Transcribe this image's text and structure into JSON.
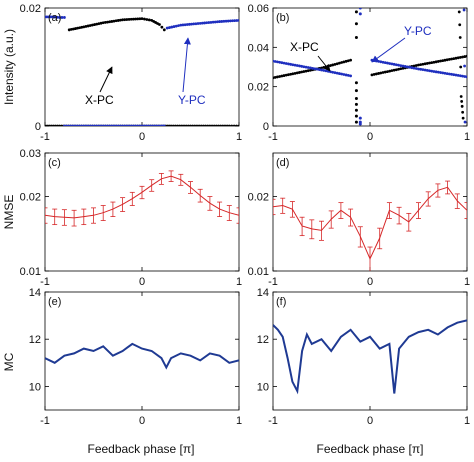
{
  "labels": {
    "ylabels": [
      "Intensity (a.u.)",
      "NMSE",
      "MC"
    ],
    "xlabel": "Feedback phase [π]"
  },
  "chart_data": [
    {
      "type": "scatter",
      "panel_label": "(a)",
      "xlim": [
        -1,
        1
      ],
      "ylim": [
        0,
        0.02
      ],
      "xticks": [
        -1,
        0,
        1
      ],
      "yticks": [
        0,
        0.02
      ],
      "ytick_labels": [
        "0",
        "0.02"
      ],
      "annotations": [
        "X-PC",
        "Y-PC"
      ],
      "series": [
        {
          "color": "#000000",
          "x": [
            -1,
            -0.85,
            -0.6,
            -0.4,
            -0.2,
            0,
            0.15,
            0.22,
            0.3,
            0.5,
            0.7,
            0.9,
            1
          ],
          "y": [
            0,
            0,
            0,
            0,
            0,
            0,
            0,
            0,
            0,
            0,
            0,
            0,
            0
          ]
        },
        {
          "color": "#000000",
          "x": [
            -0.75,
            -0.6,
            -0.4,
            -0.2,
            0,
            0.1,
            0.18,
            0.23
          ],
          "y": [
            0.0163,
            0.0168,
            0.0175,
            0.018,
            0.0182,
            0.0179,
            0.0172,
            0.0163
          ]
        },
        {
          "color": "#1f2fbf",
          "x": [
            -1,
            -0.92,
            -0.85,
            -0.8
          ],
          "y": [
            0.0185,
            0.0185,
            0.0184,
            0.0184
          ]
        },
        {
          "color": "#1f2fbf",
          "x": [
            -0.8,
            -0.6,
            -0.4,
            -0.2,
            0,
            0.2,
            0.23
          ],
          "y": [
            0,
            0,
            0,
            0,
            0,
            0,
            0
          ]
        },
        {
          "color": "#1f2fbf",
          "x": [
            0.26,
            0.4,
            0.6,
            0.8,
            1
          ],
          "y": [
            0.0166,
            0.0171,
            0.0174,
            0.0177,
            0.0179
          ]
        }
      ]
    },
    {
      "type": "scatter",
      "panel_label": "(b)",
      "xlim": [
        -1,
        1
      ],
      "ylim": [
        0,
        0.06
      ],
      "xticks": [
        -1,
        0,
        1
      ],
      "yticks": [
        0,
        0.02,
        0.04,
        0.06
      ],
      "ytick_labels": [
        "0",
        "0.02",
        "0.04",
        "0.06"
      ],
      "annotations": [
        "X-PC",
        "Y-PC"
      ],
      "series": [
        {
          "color": "#000000",
          "x": [
            -1,
            -0.5,
            -0.2
          ],
          "y": [
            0.0245,
            0.0295,
            0.0335
          ]
        },
        {
          "color": "#000000",
          "x": [
            0.02,
            0.5,
            1
          ],
          "y": [
            0.026,
            0.031,
            0.0355
          ]
        },
        {
          "color": "#1f2fbf",
          "x": [
            -1,
            -0.5,
            -0.2
          ],
          "y": [
            0.033,
            0.0285,
            0.0255
          ]
        },
        {
          "color": "#1f2fbf",
          "x": [
            0.02,
            0.5,
            1
          ],
          "y": [
            0.0335,
            0.029,
            0.025
          ]
        },
        {
          "color": "#000000",
          "x": [
            -0.14,
            -0.14,
            -0.14,
            -0.14,
            -0.14,
            -0.14,
            -0.14,
            -0.14,
            -0.14,
            -0.14
          ],
          "y": [
            0.058,
            0.052,
            0.045,
            0.022,
            0.018,
            0.014,
            0.011,
            0.008,
            0.005,
            0.002
          ]
        },
        {
          "color": "#1f2fbf",
          "x": [
            -0.1,
            -0.1,
            -0.1,
            -0.1,
            -0.1
          ],
          "y": [
            0.06,
            0.057,
            0.004,
            0.002,
            0.001
          ]
        },
        {
          "color": "#000000",
          "x": [
            0.92,
            0.93,
            0.94,
            0.95,
            0.96
          ],
          "y": [
            0.058,
            0.045,
            0.015,
            0.01,
            0.004
          ]
        },
        {
          "color": "#1f2fbf",
          "x": [
            0.97,
            0.98
          ],
          "y": [
            0.059,
            0.002
          ]
        }
      ]
    },
    {
      "type": "line",
      "panel_label": "(c)",
      "xlim": [
        -1,
        1
      ],
      "ylim": [
        0.01,
        0.03
      ],
      "yscale": "log",
      "xticks": [
        -1,
        0,
        1
      ],
      "yticks": [
        0.01,
        0.02,
        0.03
      ],
      "ytick_labels": [
        "0.01",
        "0.02",
        "0.03"
      ],
      "error_bars": true,
      "series": [
        {
          "color": "#d62728",
          "x": [
            -1,
            -0.9,
            -0.8,
            -0.7,
            -0.6,
            -0.5,
            -0.4,
            -0.3,
            -0.2,
            -0.1,
            0,
            0.1,
            0.2,
            0.3,
            0.4,
            0.5,
            0.6,
            0.7,
            0.8,
            0.9,
            1
          ],
          "y": [
            0.0168,
            0.0166,
            0.0165,
            0.0164,
            0.0166,
            0.0168,
            0.0172,
            0.0178,
            0.0186,
            0.0196,
            0.0208,
            0.0222,
            0.0236,
            0.0242,
            0.0234,
            0.0218,
            0.0202,
            0.0188,
            0.0178,
            0.0172,
            0.0168
          ],
          "err": 0.0012
        }
      ]
    },
    {
      "type": "line",
      "panel_label": "(d)",
      "xlim": [
        -1,
        1
      ],
      "ylim": [
        0.01,
        0.03
      ],
      "yscale": "log",
      "xticks": [
        -1,
        0,
        1
      ],
      "yticks": [
        0.01,
        0.02
      ],
      "ytick_labels": [
        "0.01",
        "0.02"
      ],
      "error_bars": true,
      "series": [
        {
          "color": "#d62728",
          "x": [
            -1,
            -0.9,
            -0.8,
            -0.7,
            -0.6,
            -0.5,
            -0.4,
            -0.3,
            -0.2,
            -0.1,
            0,
            0.1,
            0.2,
            0.3,
            0.4,
            0.5,
            0.6,
            0.7,
            0.8,
            0.9,
            1
          ],
          "y": [
            0.0182,
            0.0184,
            0.0178,
            0.0152,
            0.0148,
            0.0146,
            0.0162,
            0.0176,
            0.0165,
            0.0138,
            0.0112,
            0.0136,
            0.0176,
            0.0168,
            0.0158,
            0.0176,
            0.0196,
            0.0212,
            0.0218,
            0.0192,
            0.0176
          ],
          "err": 0.0013
        }
      ]
    },
    {
      "type": "line",
      "panel_label": "(e)",
      "xlim": [
        -1,
        1
      ],
      "ylim": [
        9,
        14
      ],
      "xticks": [
        -1,
        0,
        1
      ],
      "yticks": [
        10,
        12,
        14
      ],
      "ytick_labels": [
        "10",
        "12",
        "14"
      ],
      "series": [
        {
          "color": "#1f3a93",
          "x": [
            -1,
            -0.9,
            -0.8,
            -0.7,
            -0.6,
            -0.5,
            -0.4,
            -0.3,
            -0.2,
            -0.1,
            0,
            0.1,
            0.2,
            0.25,
            0.3,
            0.4,
            0.5,
            0.6,
            0.7,
            0.8,
            0.9,
            1
          ],
          "y": [
            11.2,
            11.0,
            11.3,
            11.4,
            11.6,
            11.5,
            11.7,
            11.3,
            11.5,
            11.8,
            11.6,
            11.5,
            11.2,
            10.8,
            11.2,
            11.4,
            11.3,
            11.1,
            11.4,
            11.3,
            11.0,
            11.1
          ]
        }
      ]
    },
    {
      "type": "line",
      "panel_label": "(f)",
      "xlim": [
        -1,
        1
      ],
      "ylim": [
        9,
        14
      ],
      "xticks": [
        -1,
        0,
        1
      ],
      "yticks": [
        10,
        12,
        14
      ],
      "ytick_labels": [
        "10",
        "12",
        "14"
      ],
      "series": [
        {
          "color": "#1f3a93",
          "x": [
            -1,
            -0.95,
            -0.9,
            -0.85,
            -0.8,
            -0.75,
            -0.7,
            -0.65,
            -0.6,
            -0.5,
            -0.4,
            -0.3,
            -0.2,
            -0.1,
            0,
            0.1,
            0.2,
            0.25,
            0.3,
            0.4,
            0.5,
            0.6,
            0.7,
            0.8,
            0.9,
            1
          ],
          "y": [
            12.6,
            12.4,
            12.1,
            11.2,
            10.2,
            9.8,
            11.5,
            12.2,
            11.8,
            12.0,
            11.5,
            12.1,
            12.4,
            11.9,
            12.1,
            11.6,
            11.8,
            9.7,
            11.6,
            12.1,
            12.3,
            12.4,
            12.2,
            12.5,
            12.7,
            12.8
          ]
        }
      ]
    }
  ]
}
